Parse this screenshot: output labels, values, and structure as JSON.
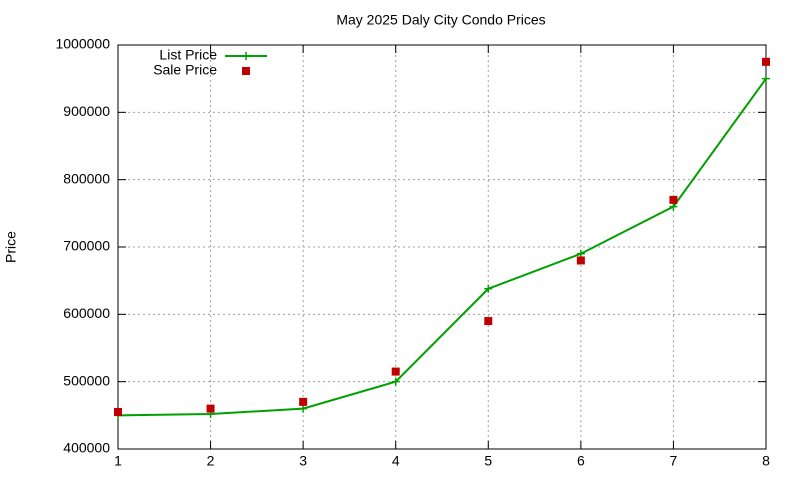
{
  "chart_data": {
    "type": "line",
    "title": "May 2025 Daly City Condo Prices",
    "y_label": "Price",
    "x": [
      1,
      2,
      3,
      4,
      5,
      6,
      7,
      8
    ],
    "series": [
      {
        "name": "List Price",
        "color": "#00a000",
        "style": "linespoints",
        "values": [
          450000,
          452000,
          460000,
          500000,
          638000,
          690000,
          760000,
          950000
        ]
      },
      {
        "name": "Sale Price",
        "color": "#c00000",
        "style": "points",
        "values": [
          455000,
          460000,
          470000,
          515000,
          590000,
          680000,
          770000,
          975000
        ]
      }
    ],
    "xlim": [
      1,
      8
    ],
    "xticks": [
      1,
      2,
      3,
      4,
      5,
      6,
      7,
      8
    ],
    "ylim": [
      400000,
      1000000
    ],
    "yticks": [
      400000,
      500000,
      600000,
      700000,
      800000,
      900000,
      1000000
    ],
    "grid": true,
    "legend": "top-left"
  }
}
